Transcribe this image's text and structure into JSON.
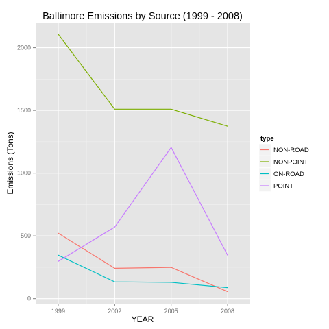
{
  "chart_data": {
    "type": "line",
    "title": "Baltimore Emissions by Source (1999 - 2008)",
    "xlabel": "YEAR",
    "ylabel": "Emissions (Tons)",
    "x": [
      1999,
      2002,
      2005,
      2008
    ],
    "x_tick_labels": [
      "1999",
      "2002",
      "2005",
      "2008"
    ],
    "y_ticks": [
      0,
      500,
      1000,
      1500,
      2000
    ],
    "y_tick_labels": [
      "0",
      "500",
      "1000",
      "1500",
      "2000"
    ],
    "xlim": [
      1997.8,
      2009.2
    ],
    "ylim": [
      -40,
      2200
    ],
    "grid": true,
    "legend_title": "type",
    "legend_position": "right",
    "series": [
      {
        "name": "NON-ROAD",
        "color": "#f8766d",
        "values": [
          522,
          242,
          249,
          55
        ]
      },
      {
        "name": "NONPOINT",
        "color": "#7cae00",
        "values": [
          2108,
          1510,
          1510,
          1374
        ]
      },
      {
        "name": "ON-ROAD",
        "color": "#00bfc4",
        "values": [
          347,
          134,
          130,
          88
        ]
      },
      {
        "name": "POINT",
        "color": "#c77cff",
        "values": [
          297,
          570,
          1205,
          345
        ]
      }
    ]
  }
}
